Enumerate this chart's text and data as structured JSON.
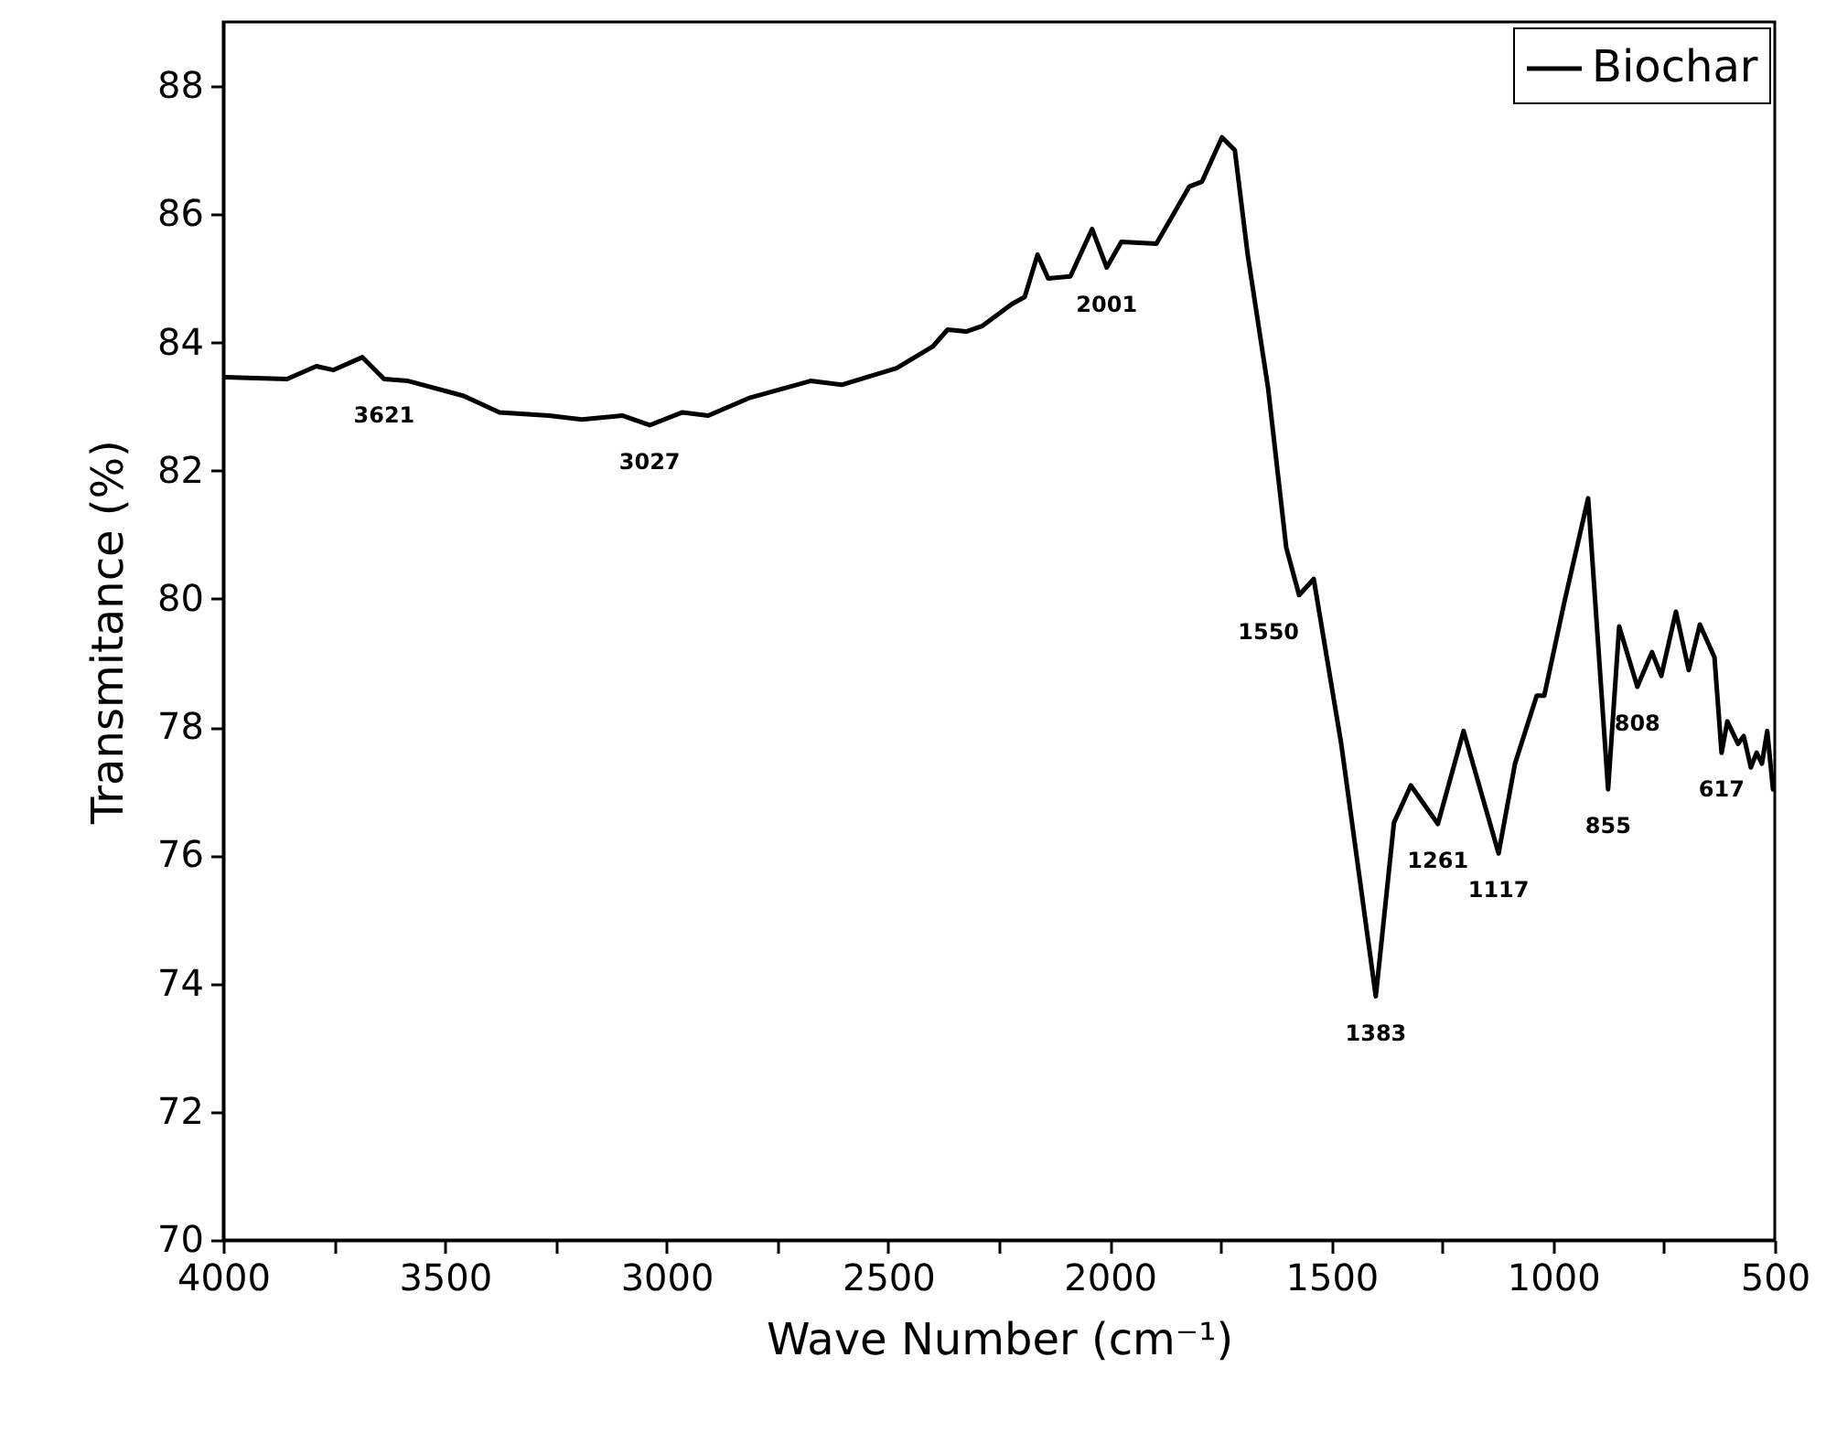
{
  "chart_data": {
    "type": "line",
    "xlabel": "Wave Number (cm⁻¹)",
    "ylabel": "Transmitance (%)",
    "xlim": [
      4000,
      500
    ],
    "ylim": [
      70,
      89
    ],
    "xticks": [
      4000,
      {
        "value": 3750,
        "label": null
      },
      3500,
      {
        "value": 3250,
        "label": null
      },
      3000,
      {
        "value": 2750,
        "label": null
      },
      2500,
      {
        "value": 2250,
        "label": null
      },
      2000,
      {
        "value": 1750,
        "label": null
      },
      1500,
      {
        "value": 1250,
        "label": null
      },
      1000,
      {
        "value": 750,
        "label": null
      },
      500
    ],
    "yticks": [
      70,
      72,
      74,
      76,
      78,
      80,
      82,
      84,
      86,
      88
    ],
    "legend": "top right",
    "series": [
      {
        "name": "Biochar",
        "color": "#000000",
        "x": [
          4000,
          3856,
          3790,
          3752,
          3686,
          3637,
          3583,
          3459,
          3377,
          3265,
          3191,
          3100,
          3038,
          2964,
          2906,
          2811,
          2675,
          2605,
          2481,
          2399,
          2366,
          2324,
          2287,
          2221,
          2192,
          2163,
          2139,
          2089,
          2040,
          2007,
          1974,
          1895,
          1821,
          1792,
          1747,
          1718,
          1689,
          1643,
          1602,
          1573,
          1540,
          1478,
          1400,
          1359,
          1321,
          1260,
          1202,
          1123,
          1086,
          1037,
          1020,
          975,
          921,
          876,
          851,
          810,
          777,
          756,
          723,
          694,
          669,
          636,
          620,
          607,
          583,
          570,
          554,
          541,
          529,
          517,
          504
        ],
        "values": [
          83.46,
          83.43,
          83.63,
          83.57,
          83.77,
          83.43,
          83.4,
          83.17,
          82.91,
          82.86,
          82.8,
          82.86,
          82.71,
          82.91,
          82.86,
          83.14,
          83.4,
          83.34,
          83.6,
          83.94,
          84.2,
          84.17,
          84.26,
          84.6,
          84.71,
          85.37,
          85.0,
          85.03,
          85.77,
          85.17,
          85.57,
          85.54,
          86.43,
          86.51,
          87.2,
          87.0,
          85.37,
          83.29,
          80.8,
          80.06,
          80.31,
          77.74,
          73.8,
          76.51,
          77.09,
          76.49,
          77.94,
          76.03,
          77.43,
          78.49,
          78.49,
          79.94,
          81.57,
          77.03,
          79.57,
          78.63,
          79.17,
          78.8,
          79.8,
          78.89,
          79.6,
          79.09,
          77.6,
          78.09,
          77.74,
          77.86,
          77.37,
          77.6,
          77.43,
          77.94,
          77.03
        ]
      }
    ],
    "annotations": [
      {
        "text": "3621",
        "x": 3637,
        "y": 83.43
      },
      {
        "text": "3027",
        "x": 3038,
        "y": 82.71
      },
      {
        "text": "2001",
        "x": 2007,
        "y": 85.17
      },
      {
        "text": "1550",
        "x": 1573,
        "y": 80.06
      },
      {
        "text": "1383",
        "x": 1400,
        "y": 73.8
      },
      {
        "text": "1261",
        "x": 1260,
        "y": 76.49
      },
      {
        "text": "1117",
        "x": 1123,
        "y": 76.03
      },
      {
        "text": "855",
        "x": 876,
        "y": 77.03
      },
      {
        "text": "808",
        "x": 810,
        "y": 78.63
      },
      {
        "text": "617",
        "x": 620,
        "y": 77.6
      }
    ]
  }
}
